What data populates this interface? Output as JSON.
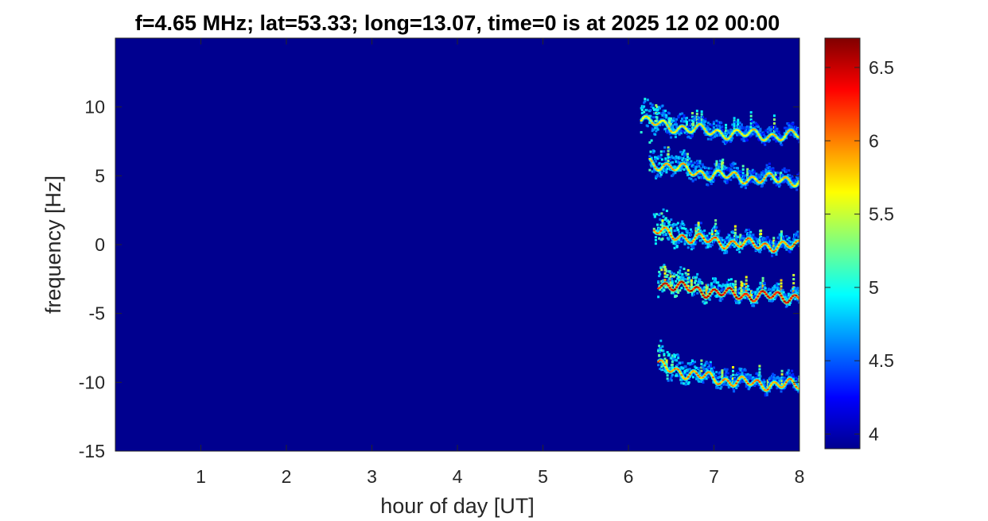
{
  "chart_data": {
    "type": "heatmap",
    "title": "f=4.65 MHz;  lat=53.33; long=13.07, time=0 is at 2025 12 02 00:00",
    "xlabel": "hour of day [UT]",
    "ylabel": "frequency [Hz]",
    "xlim": [
      0,
      8
    ],
    "ylim": [
      -15,
      15
    ],
    "x_ticks": [
      1,
      2,
      3,
      4,
      5,
      6,
      7,
      8
    ],
    "x_tick_labels": [
      "1",
      "2",
      "3",
      "4",
      "5",
      "6",
      "7",
      "8"
    ],
    "y_ticks": [
      -15,
      -10,
      -5,
      0,
      5,
      10
    ],
    "y_tick_labels": [
      "-15",
      "-10",
      "-5",
      "0",
      "5",
      "10"
    ],
    "colorbar": {
      "colormap": "jet",
      "clim": [
        3.9,
        6.7
      ],
      "ticks": [
        4,
        4.5,
        5,
        5.5,
        6,
        6.5
      ],
      "tick_labels": [
        "4",
        "4.5",
        "5",
        "5.5",
        "6",
        "6.5"
      ]
    },
    "background_value": 3.95,
    "traces": [
      {
        "x_start": 6.15,
        "x_end": 8.0,
        "y_start": 9.0,
        "y_end": 7.9,
        "peak": 5.9
      },
      {
        "x_start": 6.25,
        "x_end": 8.0,
        "y_start": 6.0,
        "y_end": 4.7,
        "peak": 6.0
      },
      {
        "x_start": 6.3,
        "x_end": 8.0,
        "y_start": 1.0,
        "y_end": -0.1,
        "peak": 6.3
      },
      {
        "x_start": 6.35,
        "x_end": 8.0,
        "y_start": -2.8,
        "y_end": -3.8,
        "peak": 6.7
      },
      {
        "x_start": 6.35,
        "x_end": 8.0,
        "y_start": -8.8,
        "y_end": -10.2,
        "peak": 6.2
      }
    ],
    "grid": false,
    "legend": "none"
  }
}
